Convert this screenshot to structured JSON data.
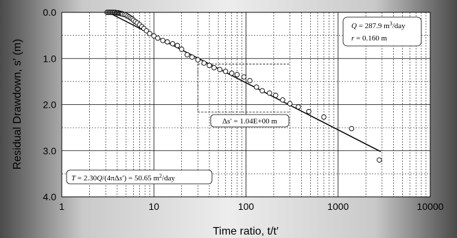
{
  "chart_data": {
    "type": "scatter",
    "xlabel": "Time ratio, t/t′",
    "ylabel": "Residual Drawdown, s′ (m)",
    "x_scale": "log",
    "xlim": [
      1,
      10000
    ],
    "ylim": [
      0.0,
      4.0
    ],
    "y_inverted": true,
    "grid": true,
    "x_ticks": [
      "1",
      "10",
      "100",
      "1000",
      "10000"
    ],
    "y_ticks": [
      "0.0",
      "1.0",
      "2.0",
      "3.0",
      "4.0"
    ],
    "series": [
      {
        "kind": "points",
        "x": [
          3.1,
          3.2,
          3.3,
          3.4,
          3.5,
          3.6,
          3.7,
          3.8,
          3.9,
          4.0,
          4.1,
          4.2,
          4.3,
          4.4,
          4.5,
          4.6,
          4.8,
          5.0,
          5.2,
          5.4,
          5.6,
          5.8,
          6.0,
          6.3,
          6.6,
          7.0,
          7.4,
          7.8,
          8.3,
          9.0,
          10.0,
          11.0,
          12.5,
          14.0,
          16.0,
          18.0,
          20.0,
          23.0,
          26.0,
          30.0,
          35.0,
          40.0,
          45.0,
          52.0,
          60.0,
          70.0,
          80.0,
          95.0,
          110.0,
          130.0,
          150.0,
          180.0,
          210.0,
          250.0,
          300.0,
          370.0,
          480.0,
          700.0,
          1400.0,
          2800.0
        ],
        "y": [
          0.0,
          0.0,
          0.0,
          0.0,
          0.0,
          0.0,
          0.0,
          0.0,
          0.01,
          0.01,
          0.01,
          0.02,
          0.02,
          0.03,
          0.03,
          0.04,
          0.05,
          0.06,
          0.08,
          0.1,
          0.12,
          0.14,
          0.17,
          0.2,
          0.23,
          0.27,
          0.31,
          0.35,
          0.4,
          0.46,
          0.51,
          0.56,
          0.61,
          0.64,
          0.68,
          0.72,
          0.8,
          0.92,
          0.97,
          1.03,
          1.1,
          1.15,
          1.2,
          1.24,
          1.28,
          1.32,
          1.35,
          1.4,
          1.48,
          1.62,
          1.7,
          1.75,
          1.8,
          1.9,
          1.98,
          2.05,
          2.15,
          2.27,
          2.52,
          3.2
        ]
      },
      {
        "kind": "fit-line",
        "x": [
          3.2,
          2900.0
        ],
        "y": [
          0.0,
          3.02
        ]
      }
    ],
    "annotations": {
      "params": {
        "q_label": "Q",
        "q_value": " = 287.9 m",
        "q_sup": "3",
        "q_unit": "/day",
        "r_label": "r",
        "r_value": " = 0.160 m"
      },
      "delta": {
        "text": "Δs′ = 1.04E+00 m",
        "x_range": [
          30,
          300
        ],
        "y_range": [
          1.12,
          2.16
        ]
      },
      "formula": {
        "t_label": "T",
        "eq_start": " = 2.30",
        "q": "Q",
        "slash_open": "/(4πΔ",
        "s": "s",
        "close": "′) = 50.65 m",
        "sup": "2",
        "unit": "/day"
      }
    }
  }
}
